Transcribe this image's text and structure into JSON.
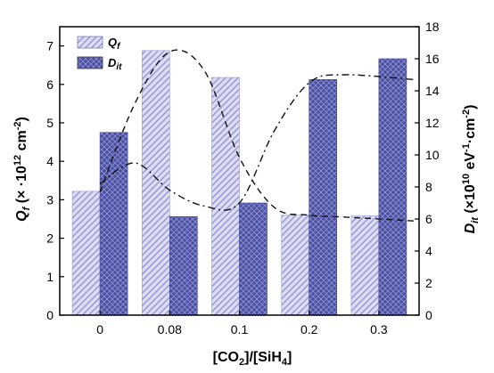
{
  "chart_data": {
    "type": "bar",
    "categories": [
      "0",
      "0.08",
      "0.1",
      "0.2",
      "0.3"
    ],
    "series": [
      {
        "name": "Q_f",
        "axis": "left",
        "values": [
          3.22,
          6.88,
          6.18,
          2.6,
          2.58
        ],
        "color": "#9a9ad8",
        "pattern": "diagonal-hatch"
      },
      {
        "name": "D_it",
        "axis": "right",
        "values": [
          11.4,
          6.15,
          7.0,
          14.7,
          16.0
        ],
        "color": "#4a4fa0",
        "pattern": "crosshatch"
      }
    ],
    "trend_lines": [
      {
        "series": "Q_f",
        "style": "dash",
        "x_positions": [
          0,
          0.5,
          1,
          1.5,
          2,
          2.5,
          3,
          3.5,
          4.5
        ],
        "values": [
          3.2,
          5.5,
          6.85,
          6.35,
          4.1,
          2.8,
          2.6,
          2.55,
          2.45
        ]
      },
      {
        "series": "D_it",
        "style": "dash-dot",
        "x_positions": [
          0,
          0.5,
          1,
          1.5,
          2,
          2.5,
          3,
          3.5,
          4.5
        ],
        "values": [
          8.2,
          9.5,
          7.8,
          6.8,
          7.0,
          11.5,
          14.5,
          15.0,
          14.7
        ]
      }
    ],
    "xlabel": {
      "main": "[CO",
      "sub1": "2",
      "mid": "]/[SiH",
      "sub2": "4",
      "end": "]"
    },
    "ylabel_left": {
      "main": "Q",
      "sub": "f",
      "rest": " (× ·10",
      "sup": "12",
      "unit": " cm",
      "unit_sup": "-2",
      "close": ")"
    },
    "ylabel_right": {
      "main": "D",
      "sub": "it",
      "rest": " (×10",
      "sup": "10",
      "unit": " eV",
      "unit_sup": "-1",
      "unit2": "·cm",
      "unit2_sup": "-2",
      "close": ")"
    },
    "ylim_left": [
      0,
      7.5
    ],
    "ylim_right": [
      0,
      18
    ],
    "yticks_left": [
      "0",
      "1",
      "2",
      "3",
      "4",
      "5",
      "6",
      "7"
    ],
    "yticks_right": [
      "0",
      "2",
      "4",
      "6",
      "8",
      "10",
      "12",
      "14",
      "16",
      "18"
    ],
    "legend": {
      "position": "top-left",
      "entries": [
        {
          "main": "Q",
          "sub": "f"
        },
        {
          "main": "D",
          "sub": "it"
        }
      ]
    },
    "grid": false
  }
}
